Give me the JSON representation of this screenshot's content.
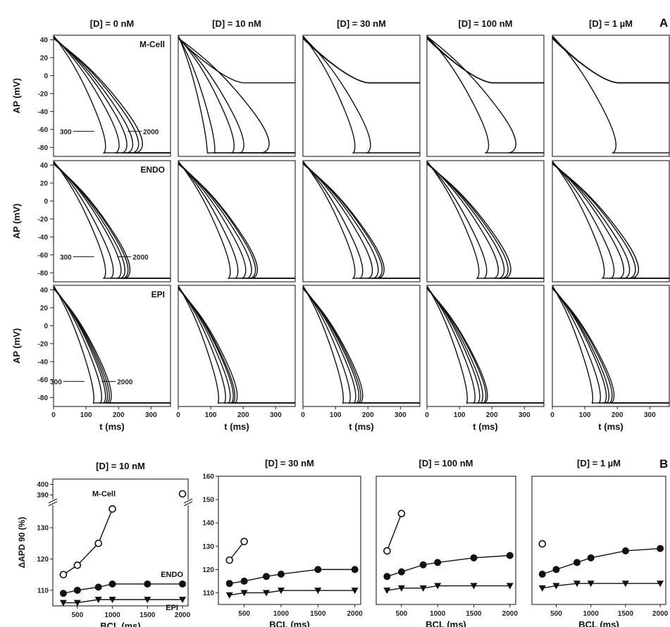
{
  "figure": {
    "panel_a_letter": "A",
    "panel_b_letter": "B"
  },
  "chart_data": [
    {
      "type": "line",
      "panel": "A",
      "column_titles": [
        "[D] = 0 nM",
        "[D] = 10 nM",
        "[D] = 30 nM",
        "[D] = 100 nM",
        "[D] = 1 µM"
      ],
      "row_labels": [
        "M-Cell",
        "ENDO",
        "EPI"
      ],
      "ylabel": "AP (mV)",
      "xlabel": "t (ms)",
      "xlim": [
        0,
        360
      ],
      "ylim": [
        -90,
        45
      ],
      "x_ticks": [
        "0",
        "100",
        "200",
        "300"
      ],
      "y_ticks": [
        "40",
        "20",
        "0",
        "-20",
        "-40",
        "-60",
        "-80"
      ],
      "annotations": [
        {
          "row": 0,
          "col": 0,
          "left": "300",
          "right": "2000"
        },
        {
          "row": 1,
          "col": 0,
          "left": "300",
          "right": "2000"
        },
        {
          "row": 2,
          "col": 0,
          "left": "300",
          "right": "2000"
        }
      ],
      "bcl_curves_ms": [
        300,
        500,
        800,
        1000,
        1500,
        2000
      ],
      "repolarization_times_ms": [
        [
          [
            130,
            165,
            185,
            200,
            215,
            225
          ],
          [
            70,
            90,
            140,
            165,
            230,
            -1
          ],
          [
            130,
            170,
            -1,
            -1,
            -1,
            -1
          ],
          [
            155,
            225,
            -1,
            -1,
            -1,
            -1
          ],
          [
            160,
            -1,
            -1,
            -1,
            -1,
            -1
          ]
        ],
        [
          [
            130,
            150,
            170,
            180,
            188,
            193
          ],
          [
            130,
            150,
            170,
            185,
            195,
            200
          ],
          [
            130,
            150,
            175,
            190,
            200,
            205
          ],
          [
            130,
            150,
            180,
            195,
            205,
            212
          ],
          [
            130,
            155,
            180,
            195,
            210,
            218
          ]
        ],
        [
          [
            100,
            120,
            130,
            135,
            140,
            145
          ],
          [
            100,
            118,
            130,
            138,
            142,
            148
          ],
          [
            100,
            118,
            132,
            140,
            145,
            150
          ],
          [
            100,
            120,
            132,
            140,
            148,
            152
          ],
          [
            100,
            120,
            135,
            142,
            150,
            155
          ]
        ]
      ],
      "plateau_level_mV": [
        -8,
        -8,
        -8,
        -8,
        -8
      ]
    },
    {
      "type": "scatter",
      "panel": "B",
      "title": "[D] = 10 nM",
      "xlabel": "BCL (ms)",
      "ylabel": "ΔAPD 90 (%)",
      "x_ticks": [
        500,
        1000,
        1500,
        2000
      ],
      "y_ticks_lower": [
        110,
        120,
        130
      ],
      "y_ticks_upper": [
        390,
        400
      ],
      "ylim": [
        105,
        400
      ],
      "series": [
        {
          "name": "M-Cell",
          "marker": "open-circle",
          "x": [
            300,
            500,
            800,
            1000
          ],
          "y": [
            115,
            118,
            125,
            136
          ]
        },
        {
          "name": "ENDO",
          "marker": "filled-circle",
          "x": [
            300,
            500,
            800,
            1000,
            1500,
            2000
          ],
          "y": [
            109,
            110,
            111,
            112,
            112,
            112
          ]
        },
        {
          "name": "EPI",
          "marker": "filled-triangle",
          "x": [
            300,
            500,
            800,
            1000,
            1500,
            2000
          ],
          "y": [
            106,
            106,
            107,
            107,
            107,
            107
          ]
        }
      ],
      "outlier_points": [
        {
          "x": 2000,
          "y": 391
        }
      ]
    },
    {
      "type": "scatter",
      "panel": "B",
      "title": "[D] = 30 nM",
      "xlabel": "BCL (ms)",
      "x_ticks": [
        500,
        1000,
        1500,
        2000
      ],
      "y_ticks": [
        110,
        120,
        130,
        140,
        150,
        160
      ],
      "ylim": [
        105,
        160
      ],
      "series": [
        {
          "marker": "open-circle",
          "x": [
            300,
            500
          ],
          "y": [
            124,
            132
          ]
        },
        {
          "marker": "filled-circle",
          "x": [
            300,
            500,
            800,
            1000,
            1500,
            2000
          ],
          "y": [
            114,
            115,
            117,
            118,
            120,
            120
          ]
        },
        {
          "marker": "filled-triangle",
          "x": [
            300,
            500,
            800,
            1000,
            1500,
            2000
          ],
          "y": [
            109,
            110,
            110,
            111,
            111,
            111
          ]
        }
      ]
    },
    {
      "type": "scatter",
      "panel": "B",
      "title": "[D] = 100 nM",
      "xlabel": "BCL (ms)",
      "x_ticks": [
        500,
        1000,
        1500,
        2000
      ],
      "y_ticks": [],
      "ylim": [
        105,
        160
      ],
      "series": [
        {
          "marker": "open-circle",
          "x": [
            300,
            500
          ],
          "y": [
            128,
            144
          ]
        },
        {
          "marker": "filled-circle",
          "x": [
            300,
            500,
            800,
            1000,
            1500,
            2000
          ],
          "y": [
            117,
            119,
            122,
            123,
            125,
            126
          ]
        },
        {
          "marker": "filled-triangle",
          "x": [
            300,
            500,
            800,
            1000,
            1500,
            2000
          ],
          "y": [
            111,
            112,
            112,
            113,
            113,
            113
          ]
        }
      ]
    },
    {
      "type": "scatter",
      "panel": "B",
      "title": "[D] = 1 µM",
      "xlabel": "BCL (ms)",
      "x_ticks": [
        500,
        1000,
        1500,
        2000
      ],
      "y_ticks": [],
      "ylim": [
        105,
        160
      ],
      "series": [
        {
          "marker": "open-circle",
          "x": [
            300
          ],
          "y": [
            131
          ]
        },
        {
          "marker": "filled-circle",
          "x": [
            300,
            500,
            800,
            1000,
            1500,
            2000
          ],
          "y": [
            118,
            120,
            123,
            125,
            128,
            129
          ]
        },
        {
          "marker": "filled-triangle",
          "x": [
            300,
            500,
            800,
            1000,
            1500,
            2000
          ],
          "y": [
            112,
            113,
            114,
            114,
            114,
            114
          ]
        }
      ]
    }
  ]
}
